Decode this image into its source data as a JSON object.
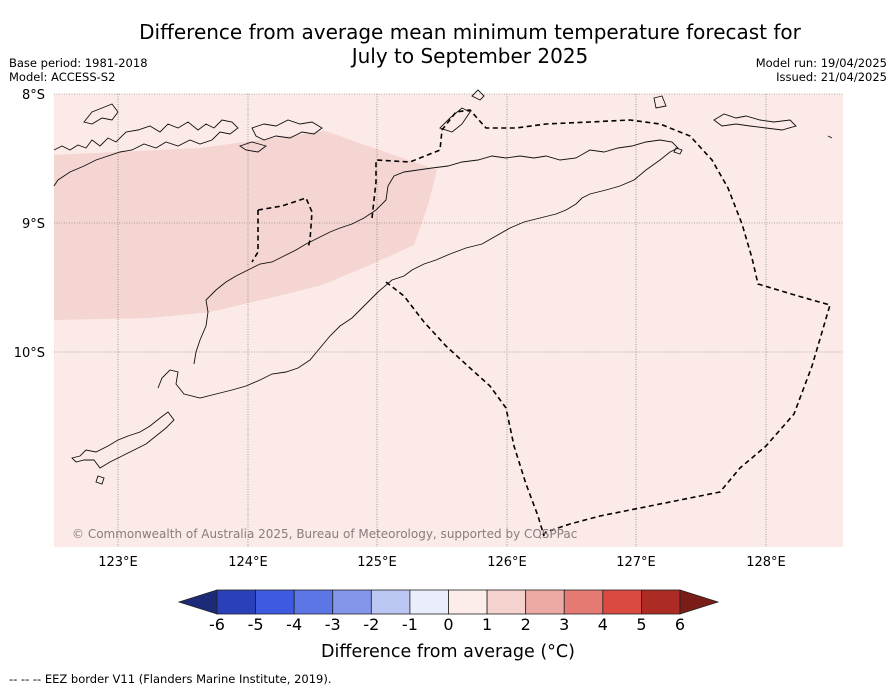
{
  "title_line1": "Difference from average mean minimum temperature forecast for",
  "title_line2": "July to September 2025",
  "base_period": "Base period: 1981-2018",
  "model": "Model: ACCESS-S2",
  "model_run": "Model run: 19/04/2025",
  "issued": "Issued: 21/04/2025",
  "copyright": "© Commonwealth of Australia 2025, Bureau of Meteorology, supported by COSPPac",
  "lat_labels": [
    "8°S",
    "9°S",
    "10°S"
  ],
  "lon_labels": [
    "123°E",
    "124°E",
    "125°E",
    "126°E",
    "127°E",
    "128°E"
  ],
  "colorbar": {
    "ticks": [
      "-6",
      "-5",
      "-4",
      "-3",
      "-2",
      "-1",
      "0",
      "1",
      "2",
      "3",
      "4",
      "5",
      "6"
    ],
    "colors": [
      "#1c2a78",
      "#2a40b8",
      "#3d5ae0",
      "#5c76e6",
      "#8496eb",
      "#bcc6f3",
      "#eaedfb",
      "#fcecea",
      "#f6d2cf",
      "#edaaa5",
      "#e47a72",
      "#da4a40",
      "#ac2b24",
      "#7a1d18"
    ],
    "label": "Difference from average (°C)"
  },
  "map_colors": {
    "background": "#fbeae8",
    "anomaly_1_2": "#f5d5d2"
  },
  "footnote": "-- -- -- EEZ border V11 (Flanders Marine Institute, 2019)."
}
